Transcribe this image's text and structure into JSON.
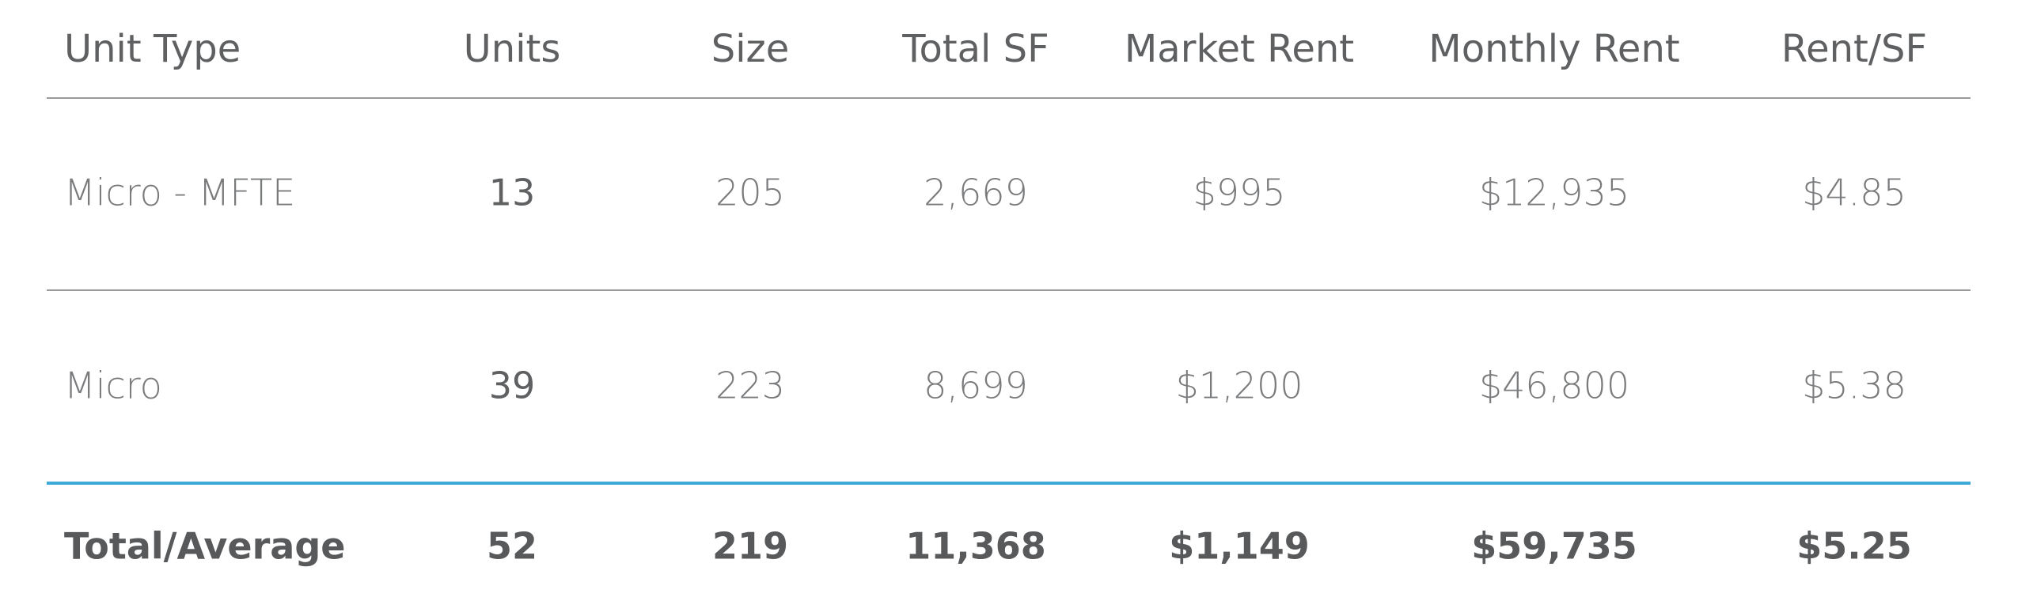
{
  "table": {
    "header": [
      "Unit Type",
      "Units",
      "Size",
      "Total SF",
      "Market Rent",
      "Monthly Rent",
      "Rent/SF"
    ],
    "rows": [
      [
        "Micro - MFTE",
        "13",
        "205",
        "2,669",
        "$995",
        "$12,935",
        "$4.85"
      ],
      [
        "Micro",
        "39",
        "223",
        "8,699",
        "$1,200",
        "$46,800",
        "$5.38"
      ]
    ],
    "total": [
      "Total/Average",
      "52",
      "219",
      "11,368",
      "$1,149",
      "$59,735",
      "$5.25"
    ]
  }
}
